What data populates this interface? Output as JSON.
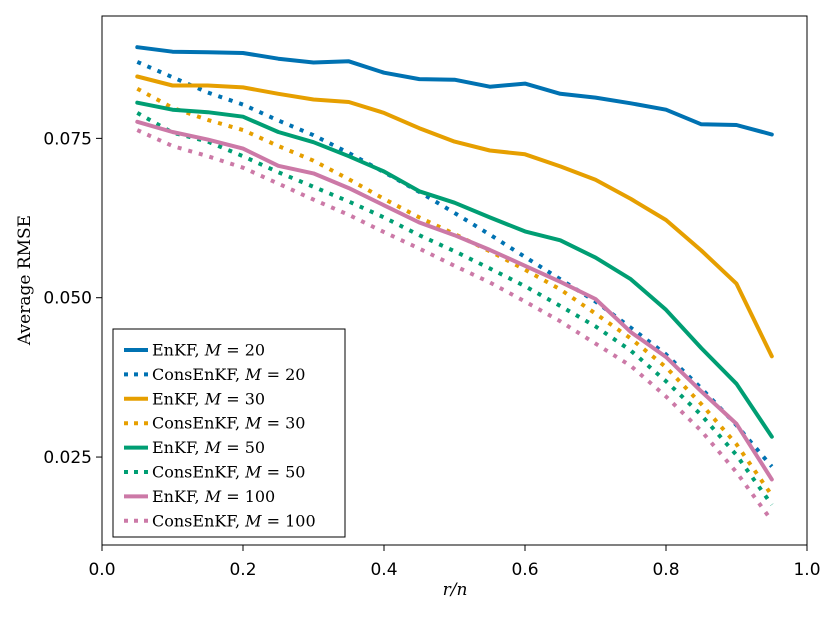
{
  "chart_data": {
    "type": "line",
    "title": "",
    "xlabel": "r/n",
    "ylabel": "Average RMSE",
    "xlim": [
      0.0,
      1.0
    ],
    "ylim": [
      0.0112,
      0.0942
    ],
    "xticks": [
      {
        "value": 0.0,
        "label": "0.0"
      },
      {
        "value": 0.2,
        "label": "0.2"
      },
      {
        "value": 0.4,
        "label": "0.4"
      },
      {
        "value": 0.6,
        "label": "0.6"
      },
      {
        "value": 0.8,
        "label": "0.8"
      },
      {
        "value": 1.0,
        "label": "1.0"
      }
    ],
    "yticks": [
      {
        "value": 0.025,
        "label": "0.025"
      },
      {
        "value": 0.05,
        "label": "0.050"
      },
      {
        "value": 0.075,
        "label": "0.075"
      }
    ],
    "grid": false,
    "legend_position": "bottom-left",
    "x": [
      0.05,
      0.1,
      0.15,
      0.2,
      0.25,
      0.3,
      0.35,
      0.4,
      0.45,
      0.5,
      0.55,
      0.6,
      0.65,
      0.7,
      0.75,
      0.8,
      0.85,
      0.9,
      0.95
    ],
    "series": [
      {
        "name": "EnKF, M = 20",
        "method": "EnKF",
        "M": "20",
        "color": "#0072B2",
        "style": "solid",
        "values": [
          0.0893,
          0.0886,
          0.0885,
          0.0884,
          0.0875,
          0.0869,
          0.0871,
          0.0853,
          0.0843,
          0.0842,
          0.0831,
          0.0836,
          0.082,
          0.0814,
          0.0805,
          0.0795,
          0.0772,
          0.0771,
          0.0756
        ]
      },
      {
        "name": "ConsEnKF, M = 20",
        "method": "ConsEnKF",
        "M": "20",
        "color": "#0072B2",
        "style": "dotted",
        "values": [
          0.087,
          0.0846,
          0.0822,
          0.0803,
          0.0778,
          0.0755,
          0.0727,
          0.0697,
          0.0666,
          0.0633,
          0.0599,
          0.0564,
          0.0529,
          0.0494,
          0.0453,
          0.0411,
          0.0358,
          0.03,
          0.0235
        ]
      },
      {
        "name": "EnKF, M = 30",
        "method": "EnKF",
        "M": "30",
        "color": "#E69F00",
        "style": "solid",
        "values": [
          0.0847,
          0.0833,
          0.0833,
          0.083,
          0.082,
          0.0811,
          0.0807,
          0.079,
          0.0766,
          0.0745,
          0.0731,
          0.0725,
          0.0706,
          0.0685,
          0.0655,
          0.0622,
          0.0574,
          0.0522,
          0.0408
        ]
      },
      {
        "name": "ConsEnKF, M = 30",
        "method": "ConsEnKF",
        "M": "30",
        "color": "#E69F00",
        "style": "dotted",
        "values": [
          0.0828,
          0.0798,
          0.0779,
          0.0763,
          0.0738,
          0.0715,
          0.0686,
          0.0655,
          0.0626,
          0.06,
          0.0573,
          0.0544,
          0.0513,
          0.0475,
          0.0436,
          0.0391,
          0.0333,
          0.027,
          0.019
        ]
      },
      {
        "name": "EnKF, M = 50",
        "method": "EnKF",
        "M": "50",
        "color": "#009E73",
        "style": "solid",
        "values": [
          0.0806,
          0.0795,
          0.0791,
          0.0784,
          0.076,
          0.0744,
          0.0722,
          0.0698,
          0.0667,
          0.0649,
          0.0626,
          0.0604,
          0.059,
          0.0563,
          0.0529,
          0.0481,
          0.0421,
          0.0365,
          0.0282
        ]
      },
      {
        "name": "ConsEnKF, M = 50",
        "method": "ConsEnKF",
        "M": "50",
        "color": "#009E73",
        "style": "dotted",
        "values": [
          0.079,
          0.0759,
          0.0745,
          0.0722,
          0.0697,
          0.0674,
          0.0651,
          0.0626,
          0.0598,
          0.0573,
          0.0546,
          0.0518,
          0.0487,
          0.0455,
          0.0417,
          0.0369,
          0.0316,
          0.0253,
          0.0175
        ]
      },
      {
        "name": "EnKF, M = 100",
        "method": "EnKF",
        "M": "100",
        "color": "#CC79A7",
        "style": "solid",
        "values": [
          0.0776,
          0.076,
          0.0748,
          0.0734,
          0.0707,
          0.0695,
          0.0672,
          0.0645,
          0.0618,
          0.0598,
          0.0575,
          0.055,
          0.0525,
          0.0498,
          0.0446,
          0.0407,
          0.0353,
          0.0302,
          0.0215
        ]
      },
      {
        "name": "ConsEnKF, M = 100",
        "method": "ConsEnKF",
        "M": "100",
        "color": "#CC79A7",
        "style": "dotted",
        "values": [
          0.0763,
          0.0738,
          0.0722,
          0.0704,
          0.0679,
          0.0654,
          0.063,
          0.0603,
          0.0577,
          0.055,
          0.0524,
          0.0494,
          0.0463,
          0.0428,
          0.0393,
          0.0345,
          0.0291,
          0.0226,
          0.015
        ]
      }
    ]
  }
}
